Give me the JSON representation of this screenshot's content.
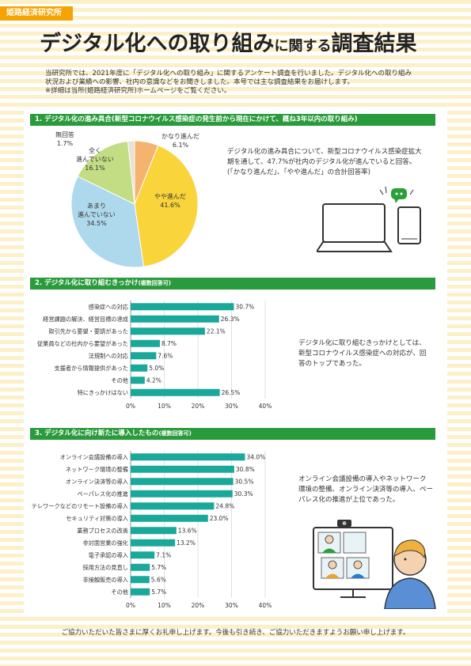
{
  "header": {
    "org": "姫路経済研究所",
    "title_main": "デジタル化への取り組み",
    "title_mid": "に関する",
    "title_end": "調査結果"
  },
  "intro": {
    "line1": "当研究所では、2021年度に「デジタル化への取り組み」に関するアンケート調査を行いました。デジタル化への取り組み",
    "line2": "状況および業績への影響、社内の意識などをお聞きしました。本号では主な調査結果をお届けします。",
    "line3": "※詳細は当所(姫路経済研究所)ホームページをご覧ください。"
  },
  "section1": {
    "title": "1. デジタル化の進み具合(新型コロナウイルス感染症の発生前から現在にかけて、概ね3年以内の取り組み)",
    "desc1": "デジタル化の進み具合について、新型コロナウイルス感染症拡大",
    "desc2": "期を通して、47.7%が社内のデジタル化が進んでいると回答。",
    "desc3": "(「かなり進んだ」、「やや進んだ」の合計回答率)"
  },
  "section2": {
    "title": "2. デジタル化に取り組むきっかけ",
    "sub": "(複数回答可)",
    "desc1": "デジタル化に取り組むきっかけとしては、",
    "desc2": "新型コロナウイルス感染症への対応が、回",
    "desc3": "答のトップであった。"
  },
  "section3": {
    "title": "3. デジタル化に向け新たに導入したもの",
    "sub": "(複数回答可)",
    "desc1": "オンライン会議設備の導入やネットワーク",
    "desc2": "環境の整備、オンライン決済等の導入、ペー",
    "desc3": "パレス化の推進が上位であった。"
  },
  "footer": {
    "text": "ご協力いただいた皆さまに厚くお礼申し上げます。今後も引き続き、ご協力いただきますようお願い申し上げます。"
  },
  "colors": {
    "accent": "#2a9b3c",
    "tag": "#f5a300",
    "bar": "#1aa89a",
    "pie_kanari": "#f5b370",
    "pie_yaya": "#f9d43a",
    "pie_amari": "#aed8ec",
    "pie_mattaku": "#c3dd84",
    "pie_muka": "#e8e2d4"
  },
  "chart_data": [
    {
      "type": "pie",
      "slices": [
        {
          "label": "かなり進んだ",
          "value": 6.1,
          "display": "6.1%"
        },
        {
          "label": "やや進んだ",
          "value": 41.6,
          "display": "41.6%"
        },
        {
          "label": "あまり\n進んでいない",
          "value": 34.5,
          "display": "34.5%"
        },
        {
          "label": "全く\n進んでいない",
          "value": 16.1,
          "display": "16.1%"
        },
        {
          "label": "無回答",
          "value": 1.7,
          "display": "1.7%"
        }
      ]
    },
    {
      "type": "bar",
      "orientation": "horizontal",
      "categories": [
        "感染症への対応",
        "経営課題の解決、経営目標の達成",
        "取引先から要望・要請があった",
        "従業員などの社内から要望があった",
        "法規制への対応",
        "支援者から情報提供があった",
        "その他",
        "特にきっかけはない"
      ],
      "values": [
        30.7,
        26.3,
        22.1,
        8.7,
        7.6,
        5.0,
        4.2,
        26.5
      ],
      "labels": [
        "30.7%",
        "26.3%",
        "22.1%",
        "8.7%",
        "7.6%",
        "5.0%",
        "4.2%",
        "26.5%"
      ],
      "xlim": [
        0,
        40
      ],
      "ticks": [
        "0%",
        "10%",
        "20%",
        "30%",
        "40%"
      ]
    },
    {
      "type": "bar",
      "orientation": "horizontal",
      "categories": [
        "オンライン会議設備の導入",
        "ネットワーク環境の整備",
        "オンライン決済等の導入",
        "ペーパレス化の推進",
        "テレワークなどのリモート設備の導入",
        "セキュリティ対策の導入",
        "業務プロセスの改善",
        "非対面営業の強化",
        "電子承認の導入",
        "採用方法の見直し",
        "非接触販売の導入",
        "その他"
      ],
      "values": [
        34.0,
        30.8,
        30.5,
        30.3,
        24.8,
        23.0,
        13.6,
        13.2,
        7.1,
        5.7,
        5.6,
        5.7
      ],
      "labels": [
        "34.0%",
        "30.8%",
        "30.5%",
        "30.3%",
        "24.8%",
        "23.0%",
        "13.6%",
        "13.2%",
        "7.1%",
        "5.7%",
        "5.6%",
        "5.7%"
      ],
      "xlim": [
        0,
        40
      ],
      "ticks": [
        "0%",
        "10%",
        "20%",
        "30%",
        "40%"
      ]
    }
  ]
}
